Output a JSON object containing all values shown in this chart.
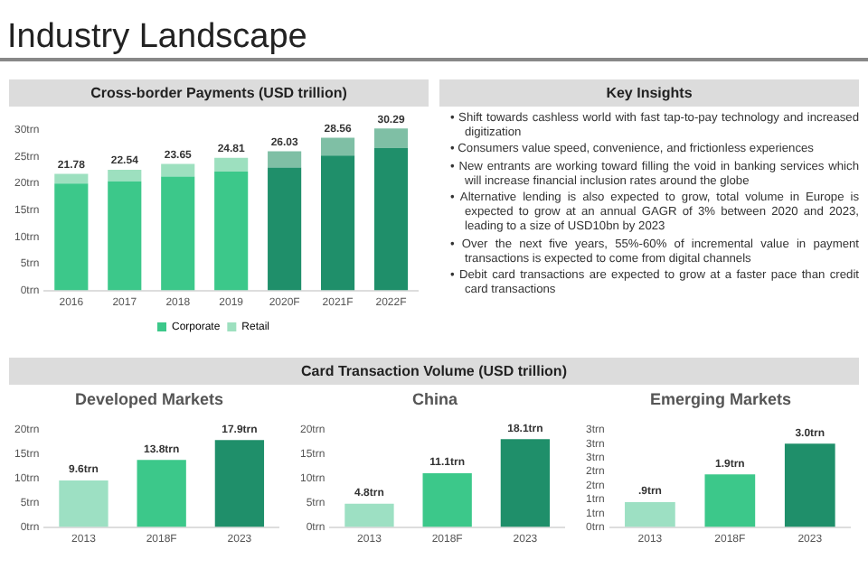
{
  "chart_data": [
    {
      "type": "other",
      "title": "Industry Landscape"
    },
    {
      "type": "bar",
      "title": "Cross-border Payments (USD trillion)",
      "categories": [
        "2016",
        "2017",
        "2018",
        "2019",
        "2020F",
        "2021F",
        "2022F"
      ],
      "stacked": true,
      "series": [
        {
          "name": "Corporate",
          "color": "#3cc88a",
          "colors": [
            "#3cc88a",
            "#3cc88a",
            "#3cc88a",
            "#3cc88a",
            "#1f8f6a",
            "#1f8f6a",
            "#1f8f6a"
          ],
          "values": [
            20.0,
            20.4,
            21.3,
            22.2,
            23.0,
            25.2,
            26.6
          ]
        },
        {
          "name": "Retail",
          "color": "#9de0bf",
          "colors": [
            "#9de0bf",
            "#9de0bf",
            "#9de0bf",
            "#9de0bf",
            "#7fbfa5",
            "#7fbfa5",
            "#7fbfa5"
          ],
          "values": [
            1.78,
            2.14,
            2.35,
            2.61,
            3.03,
            3.36,
            3.69
          ]
        }
      ],
      "totals": [
        "21.78",
        "22.54",
        "23.65",
        "24.81",
        "26.03",
        "28.56",
        "30.29"
      ],
      "ylim": [
        0,
        31
      ],
      "yticks": [
        {
          "value": 0,
          "label": "0trn"
        },
        {
          "value": 5,
          "label": "5trn"
        },
        {
          "value": 10,
          "label": "10trn"
        },
        {
          "value": 15,
          "label": "15trn"
        },
        {
          "value": 20,
          "label": "20trn"
        },
        {
          "value": 25,
          "label": "25trn"
        },
        {
          "value": 30,
          "label": "30trn"
        }
      ],
      "legend": "bottom",
      "grid": false
    },
    {
      "type": "other",
      "title": "Key Insights",
      "annotations": [
        "• Shift towards cashless world with fast tap-to-pay technology and increased digitization",
        "• Consumers value speed, convenience, and frictionless experiences",
        "• New entrants are working toward filling the void in banking services which will increase financial inclusion rates around the globe",
        "• Alternative lending is also expected to grow, total volume in Europe is expected to grow at an annual GAGR of 3% between 2020 and 2023, leading to a size of USD10bn by 2023",
        "• Over the next five years, 55%-60% of incremental value in payment transactions is expected to come from digital channels",
        "• Debit card transactions are expected to grow at a faster pace than credit card transactions"
      ]
    },
    {
      "type": "other",
      "title": "Card Transaction Volume (USD trillion)"
    },
    {
      "type": "bar",
      "title": "Developed Markets",
      "categories": [
        "2013",
        "2018F",
        "2023"
      ],
      "values": [
        9.6,
        13.8,
        17.9
      ],
      "colors": [
        "#9de0c3",
        "#3cc88a",
        "#1f8f6a"
      ],
      "value_labels": [
        "9.6trn",
        "13.8trn",
        "17.9trn"
      ],
      "ylim": [
        0,
        20
      ],
      "yticks": [
        {
          "value": 0,
          "label": "0trn"
        },
        {
          "value": 5,
          "label": "5trn"
        },
        {
          "value": 10,
          "label": "10trn"
        },
        {
          "value": 15,
          "label": "15trn"
        },
        {
          "value": 20,
          "label": "20trn"
        }
      ],
      "grid": false
    },
    {
      "type": "bar",
      "title": "China",
      "categories": [
        "2013",
        "2018F",
        "2023"
      ],
      "values": [
        4.8,
        11.1,
        18.1
      ],
      "colors": [
        "#9de0c3",
        "#3cc88a",
        "#1f8f6a"
      ],
      "value_labels": [
        "4.8trn",
        "11.1trn",
        "18.1trn"
      ],
      "ylim": [
        0,
        20
      ],
      "yticks": [
        {
          "value": 0,
          "label": "0trn"
        },
        {
          "value": 5,
          "label": "5trn"
        },
        {
          "value": 10,
          "label": "10trn"
        },
        {
          "value": 15,
          "label": "15trn"
        },
        {
          "value": 20,
          "label": "20trn"
        }
      ],
      "grid": false
    },
    {
      "type": "bar",
      "title": "Emerging Markets",
      "categories": [
        "2013",
        "2018F",
        "2023"
      ],
      "values": [
        0.9,
        1.9,
        3.0
      ],
      "colors": [
        "#9de0c3",
        "#3cc88a",
        "#1f8f6a"
      ],
      "value_labels": [
        ".9trn",
        "1.9trn",
        "3.0trn"
      ],
      "ylim": [
        0,
        3.5
      ],
      "yticks": [
        {
          "value": 0,
          "label": "0trn"
        },
        {
          "value": 0.5,
          "label": "1trn"
        },
        {
          "value": 1,
          "label": "1trn"
        },
        {
          "value": 1.5,
          "label": "2trn"
        },
        {
          "value": 2,
          "label": "2trn"
        },
        {
          "value": 2.5,
          "label": "3trn"
        },
        {
          "value": 3,
          "label": "3trn"
        },
        {
          "value": 3.5,
          "label": "3trn"
        }
      ],
      "grid": false
    }
  ]
}
